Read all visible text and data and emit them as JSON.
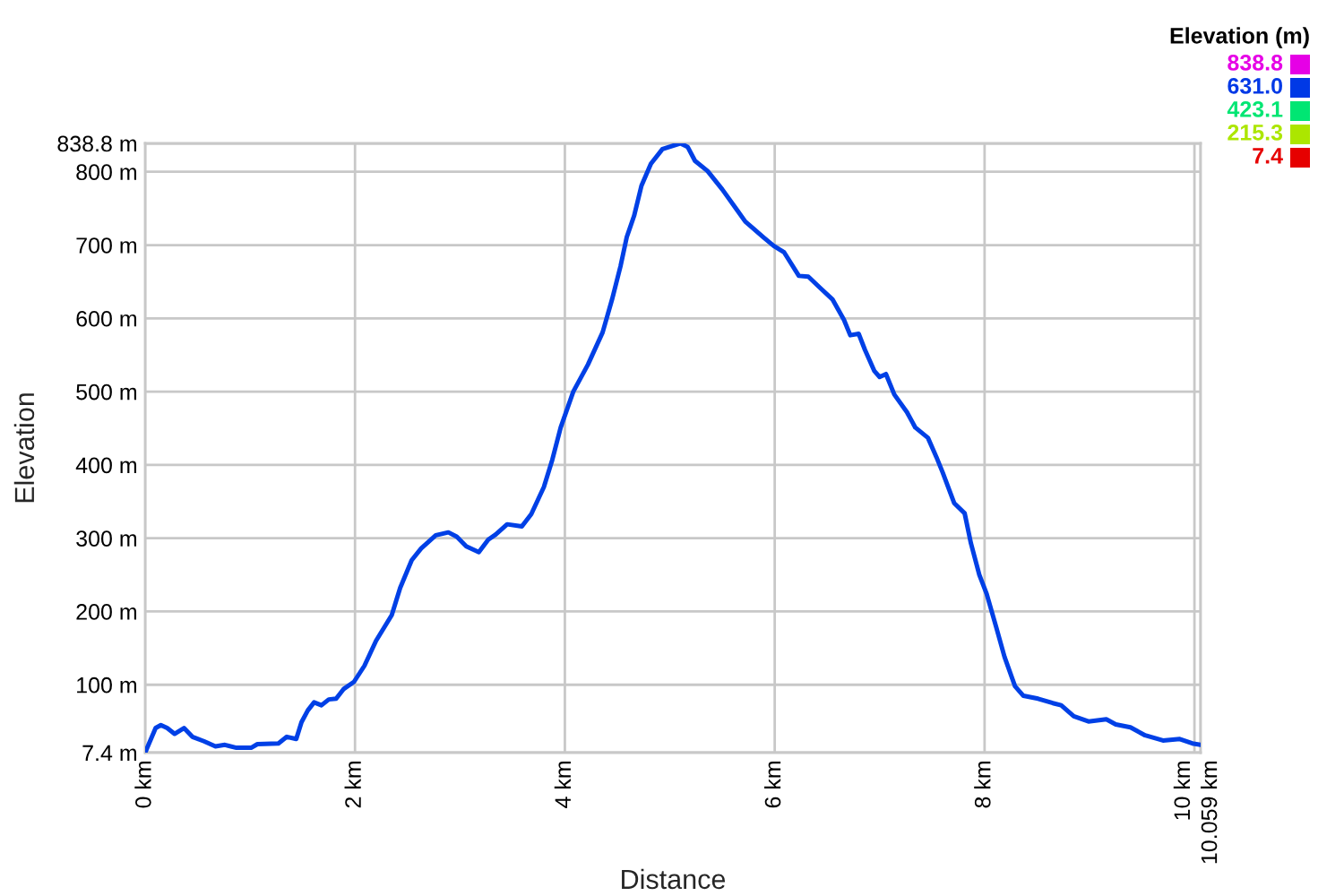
{
  "chart_data": {
    "type": "line",
    "xlabel": "Distance",
    "ylabel": "Elevation",
    "clabel": "Elevation (m)",
    "cticks": [
      {
        "value": 838.8,
        "label": "838.8"
      },
      {
        "value": 631.0,
        "label": "631.0"
      },
      {
        "value": 423.1,
        "label": "423.1"
      },
      {
        "value": 215.3,
        "label": "215.3"
      },
      {
        "value": 7.4,
        "label": "7.4"
      }
    ],
    "x": [
      0,
      0.1,
      0.15,
      0.21,
      0.28,
      0.37,
      0.45,
      0.56,
      0.67,
      0.76,
      0.87,
      1.01,
      1.07,
      1.27,
      1.35,
      1.44,
      1.49,
      1.55,
      1.61,
      1.68,
      1.75,
      1.82,
      1.89,
      1.99,
      2.09,
      2.2,
      2.35,
      2.43,
      2.54,
      2.63,
      2.77,
      2.89,
      2.97,
      3.06,
      3.18,
      3.27,
      3.34,
      3.45,
      3.59,
      3.68,
      3.8,
      3.88,
      3.96,
      4.08,
      4.22,
      4.36,
      4.45,
      4.53,
      4.59,
      4.66,
      4.73,
      4.82,
      4.93,
      5.1,
      5.17,
      5.24,
      5.36,
      5.5,
      5.64,
      5.72,
      5.89,
      5.99,
      6.09,
      6.23,
      6.32,
      6.43,
      6.55,
      6.66,
      6.72,
      6.8,
      6.86,
      6.95,
      7.0,
      7.06,
      7.14,
      7.26,
      7.34,
      7.46,
      7.54,
      7.6,
      7.71,
      7.81,
      7.87,
      7.95,
      8.02,
      8.11,
      8.19,
      8.29,
      8.37,
      8.51,
      8.65,
      8.73,
      8.85,
      8.99,
      9.16,
      9.25,
      9.39,
      9.53,
      9.7,
      9.86,
      9.98,
      10.059
    ],
    "series": [
      {
        "color": "#0040e6",
        "values": [
          7.4,
          41,
          45,
          41,
          33,
          41,
          29,
          23,
          16,
          18,
          14,
          14,
          19,
          20,
          29,
          26,
          49,
          65,
          76,
          72,
          80,
          81,
          94,
          104,
          126,
          160,
          195,
          232,
          270,
          286,
          304,
          308,
          302,
          289,
          281,
          298,
          305,
          319,
          316,
          333,
          370,
          407,
          451,
          500,
          537,
          581,
          626,
          671,
          711,
          740,
          781,
          811,
          831,
          838.8,
          834,
          815,
          801,
          776,
          748,
          732,
          711,
          699,
          690,
          658,
          657,
          642,
          626,
          598,
          577,
          579,
          557,
          528,
          520,
          524,
          496,
          472,
          451,
          437,
          411,
          390,
          348,
          334,
          293,
          250,
          224,
          179,
          138,
          98,
          85,
          81,
          75,
          72,
          57,
          50,
          53,
          46,
          42,
          31,
          24,
          26,
          20,
          18
        ]
      }
    ],
    "xlim": [
      0,
      10.059
    ],
    "xticks": [
      {
        "value": 0,
        "label": "0 km"
      },
      {
        "value": 2,
        "label": "2 km"
      },
      {
        "value": 4,
        "label": "4 km"
      },
      {
        "value": 6,
        "label": "6 km"
      },
      {
        "value": 8,
        "label": "8 km"
      },
      {
        "value": 10,
        "label": "10 km"
      },
      {
        "value": 10.059,
        "label": "10.059 km"
      }
    ],
    "ylim": [
      7.4,
      838.8
    ],
    "yticks": [
      {
        "value": 7.4,
        "label": "7.4 m"
      },
      {
        "value": 100,
        "label": "100 m"
      },
      {
        "value": 200,
        "label": "200 m"
      },
      {
        "value": 300,
        "label": "300 m"
      },
      {
        "value": 400,
        "label": "400 m"
      },
      {
        "value": 500,
        "label": "500 m"
      },
      {
        "value": 600,
        "label": "600 m"
      },
      {
        "value": 700,
        "label": "700 m"
      },
      {
        "value": 800,
        "label": "800 m"
      },
      {
        "value": 838.8,
        "label": "838.8 m"
      }
    ],
    "grid": true
  }
}
